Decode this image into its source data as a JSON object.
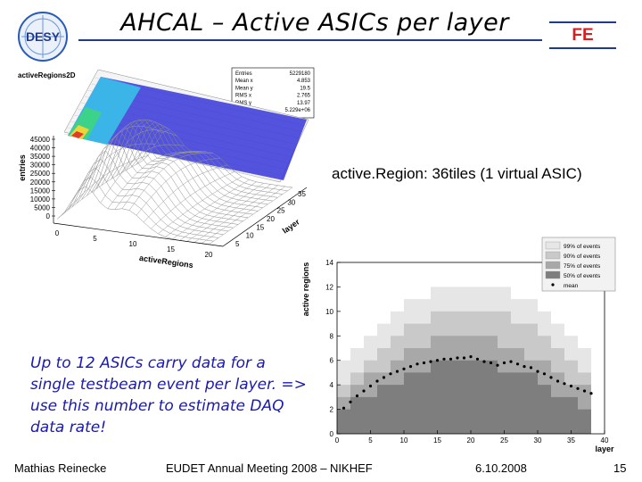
{
  "slide": {
    "title": "AHCAL – Active ASICs per layer",
    "badge": "FE",
    "logo_text": "DESY",
    "region_note": "active.Region: 36tiles (1 virtual ASIC)",
    "note": "Up to 12 ASICs carry data for a single testbeam event per layer. => use this number to estimate DAQ data rate!",
    "footer": {
      "author": "Mathias Reinecke",
      "event": "EUDET Annual Meeting 2008 – NIKHEF",
      "date": "6.10.2008",
      "page": "15"
    }
  },
  "chart_data": [
    {
      "type": "surface",
      "title": "activeRegions2D",
      "xlabel": "activeRegions",
      "ylabel": "layer",
      "zlabel": "entries",
      "x_ticks": [
        "0",
        "5",
        "10",
        "15",
        "20"
      ],
      "y_ticks": [
        "5",
        "10",
        "15",
        "20",
        "25",
        "30",
        "35"
      ],
      "z_ticks": [
        "0",
        "5000",
        "10000",
        "15000",
        "20000",
        "25000",
        "30000",
        "35000",
        "40000",
        "45000"
      ],
      "stats": [
        {
          "label": "Entries",
          "value": "5229180"
        },
        {
          "label": "Mean x",
          "value": "4.853"
        },
        {
          "label": "Mean y",
          "value": "19.5"
        },
        {
          "label": "RMS x",
          "value": "2.765"
        },
        {
          "label": "RMS y",
          "value": "13.97"
        },
        {
          "label": "Integral",
          "value": "5.229e+06"
        }
      ]
    },
    {
      "type": "area",
      "xlabel": "layer",
      "ylabel": "active regions",
      "xlim": [
        0,
        40
      ],
      "ylim": [
        0,
        14
      ],
      "x_ticks": [
        0,
        5,
        10,
        15,
        20,
        25,
        30,
        35,
        40
      ],
      "y_ticks": [
        0,
        2,
        4,
        6,
        8,
        10,
        12,
        14
      ],
      "layers": [
        1,
        3,
        5,
        7,
        9,
        11,
        13,
        15,
        17,
        19,
        21,
        23,
        25,
        27,
        29,
        31,
        33,
        35,
        37
      ],
      "legend": [
        {
          "label": "99% of events",
          "color": "#e6e6e6"
        },
        {
          "label": "90% of events",
          "color": "#c9c9c9"
        },
        {
          "label": "75% of events",
          "color": "#a8a8a8"
        },
        {
          "label": "50% of events",
          "color": "#7e7e7e"
        },
        {
          "label": "mean",
          "color": "#000000"
        }
      ],
      "bands": {
        "p99": [
          6,
          7,
          8,
          9,
          10,
          11,
          11,
          12,
          12,
          12,
          12,
          12,
          12,
          11,
          11,
          10,
          9,
          8,
          7
        ],
        "p90": [
          4,
          5,
          6,
          7,
          8,
          9,
          9,
          10,
          10,
          10,
          10,
          10,
          10,
          9,
          9,
          8,
          7,
          6,
          5
        ],
        "p75": [
          3,
          4,
          5,
          5,
          6,
          7,
          7,
          8,
          8,
          8,
          8,
          8,
          7,
          7,
          6,
          6,
          5,
          4,
          4
        ],
        "p50": [
          2,
          3,
          3,
          4,
          4,
          5,
          5,
          6,
          6,
          6,
          6,
          6,
          5,
          5,
          5,
          4,
          3,
          3,
          2
        ]
      },
      "mean_x": [
        1,
        2,
        3,
        4,
        5,
        6,
        7,
        8,
        9,
        10,
        11,
        12,
        13,
        14,
        15,
        16,
        17,
        18,
        19,
        20,
        21,
        22,
        23,
        24,
        25,
        26,
        27,
        28,
        29,
        30,
        31,
        32,
        33,
        34,
        35,
        36,
        37,
        38
      ],
      "mean_y": [
        2.1,
        2.6,
        3.1,
        3.5,
        3.9,
        4.3,
        4.6,
        4.9,
        5.1,
        5.3,
        5.5,
        5.7,
        5.8,
        5.9,
        6.0,
        6.1,
        6.1,
        6.2,
        6.2,
        6.3,
        6.1,
        5.9,
        5.8,
        5.6,
        5.8,
        5.9,
        5.7,
        5.5,
        5.4,
        5.1,
        4.9,
        4.6,
        4.3,
        4.1,
        3.9,
        3.7,
        3.5,
        3.3
      ]
    }
  ]
}
